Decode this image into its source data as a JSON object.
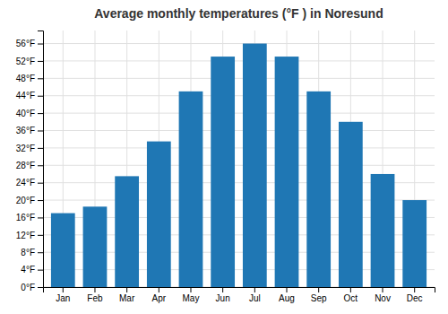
{
  "chart_data": {
    "type": "bar",
    "title": "Average monthly temperatures (°F ) in Noresund",
    "categories": [
      "Jan",
      "Feb",
      "Mar",
      "Apr",
      "May",
      "Jun",
      "Jul",
      "Aug",
      "Sep",
      "Oct",
      "Nov",
      "Dec"
    ],
    "values": [
      17,
      18.5,
      25.5,
      33.5,
      45,
      53,
      56,
      53,
      45,
      38,
      26,
      20
    ],
    "ylim": [
      0,
      59
    ],
    "yticks": [
      {
        "value": 0,
        "label": "0°F"
      },
      {
        "value": 4,
        "label": "4°F"
      },
      {
        "value": 8,
        "label": "8°F"
      },
      {
        "value": 12,
        "label": "12°F"
      },
      {
        "value": 16,
        "label": "16°F"
      },
      {
        "value": 20,
        "label": "20°F"
      },
      {
        "value": 24,
        "label": "24°F"
      },
      {
        "value": 28,
        "label": "28°F"
      },
      {
        "value": 32,
        "label": "32°F"
      },
      {
        "value": 36,
        "label": "36°F"
      },
      {
        "value": 40,
        "label": "40°F"
      },
      {
        "value": 44,
        "label": "44°F"
      },
      {
        "value": 48,
        "label": "48°F"
      },
      {
        "value": 52,
        "label": "52°F"
      },
      {
        "value": 56,
        "label": "56°F"
      }
    ],
    "grid": true
  }
}
